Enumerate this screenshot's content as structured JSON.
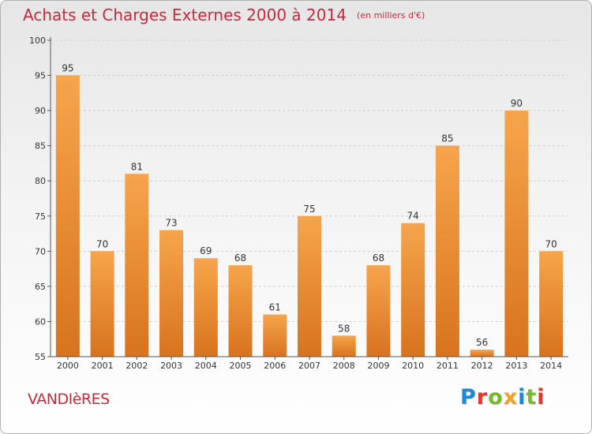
{
  "header": {
    "title": "Achats et Charges Externes 2000 à 2014",
    "unit": "(en milliers d'€)"
  },
  "footer": {
    "location": "VANDIèRES",
    "brand": "Proxiti",
    "brand_colors": [
      "#1e88d2",
      "#e2372d",
      "#7cb82f",
      "#f2a21d",
      "#1e88d2",
      "#7cb82f",
      "#e2372d"
    ]
  },
  "colors": {
    "bar_top": "#f6a54c",
    "bar_bottom": "#d8731e",
    "axis": "#555555",
    "grid": "#cfcfcf",
    "text": "#333333",
    "accent": "#c8283c"
  },
  "chart_data": {
    "type": "bar",
    "title": "Achats et Charges Externes 2000 à 2014",
    "subtitle": "(en milliers d'€)",
    "xlabel": "",
    "ylabel": "",
    "categories": [
      "2000",
      "2001",
      "2002",
      "2003",
      "2004",
      "2005",
      "2006",
      "2007",
      "2008",
      "2009",
      "2010",
      "2011",
      "2012",
      "2013",
      "2014"
    ],
    "values": [
      95,
      70,
      81,
      73,
      69,
      68,
      61,
      75,
      58,
      68,
      74,
      85,
      56,
      90,
      70
    ],
    "ylim": [
      55,
      100
    ],
    "yticks": [
      55,
      60,
      65,
      70,
      75,
      80,
      85,
      90,
      95,
      100
    ],
    "grid": "horizontal dashed",
    "legend": "none"
  }
}
